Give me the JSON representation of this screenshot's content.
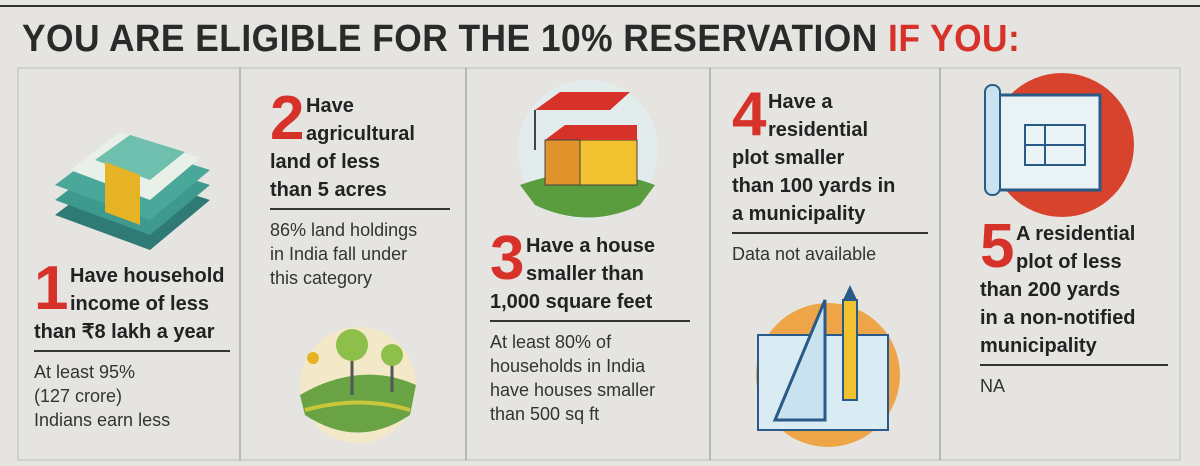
{
  "title": {
    "main": "YOU ARE ELIGIBLE FOR THE 10% RESERVATION",
    "highlight": "IF YOU:"
  },
  "items": [
    {
      "number": "1",
      "heading": [
        "Have household",
        "income of less",
        "than ₹8 lakh a year"
      ],
      "note": [
        "At least 95%",
        "(127 crore)",
        "Indians earn less"
      ]
    },
    {
      "number": "2",
      "heading": [
        "Have",
        "agricultural",
        "land of less",
        "than 5 acres"
      ],
      "note": [
        "86% land holdings",
        "in India fall under",
        "this category"
      ]
    },
    {
      "number": "3",
      "heading": [
        "Have a house",
        "smaller than",
        "1,000 square feet"
      ],
      "note": [
        "At least 80% of",
        "households in India",
        "have houses smaller",
        "than 500 sq ft"
      ]
    },
    {
      "number": "4",
      "heading": [
        "Have a",
        "residential",
        "plot smaller",
        "than 100 yards in",
        "a municipality"
      ],
      "note": [
        "Data not available"
      ]
    },
    {
      "number": "5",
      "heading": [
        "A residential",
        "plot of less",
        "than 200 yards",
        "in a non-notified",
        "municipality"
      ],
      "note": [
        "NA"
      ]
    }
  ]
}
